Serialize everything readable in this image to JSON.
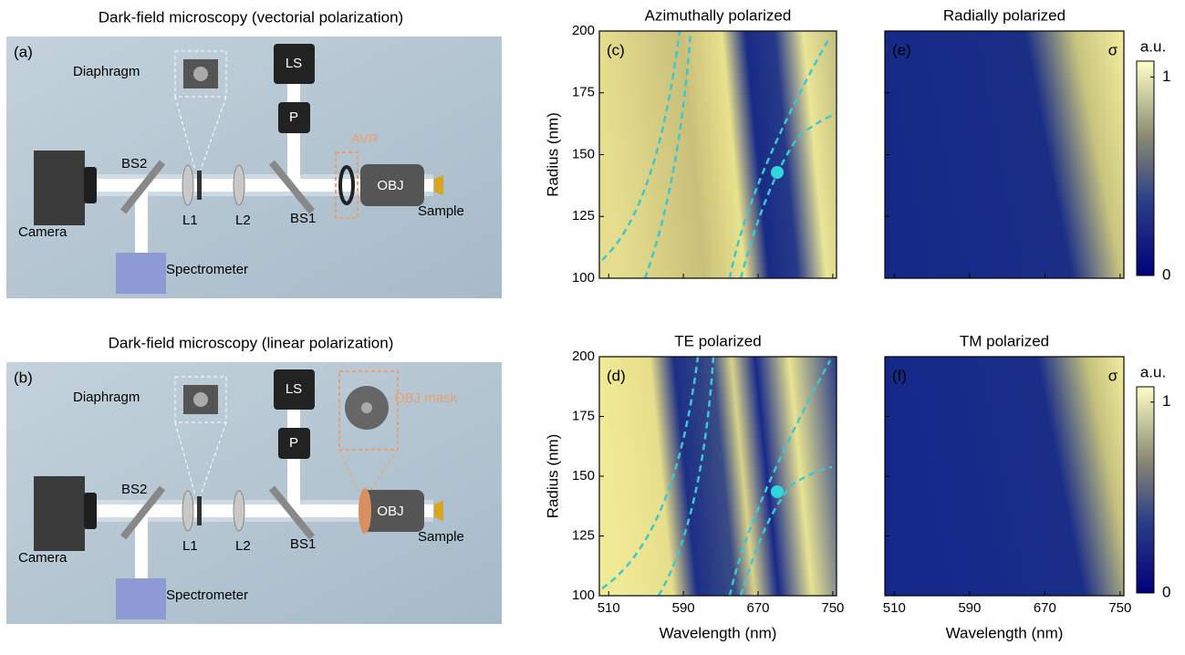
{
  "schematics": [
    {
      "title": "Dark-field microscopy  (vectorial polarization)",
      "panel": "(a)",
      "diaphragm": "Diaphragm",
      "light_source": "LS",
      "polarizer": "P",
      "element": "AVR",
      "beam_splitter_2": "BS2",
      "lens_1": "L1",
      "lens_2": "L2",
      "beam_splitter_1": "BS1",
      "objective": "OBJ",
      "sample": "Sample",
      "camera": "Camera",
      "spectrometer": "Spectrometer"
    },
    {
      "title": "Dark-field microscopy (linear polarization)",
      "panel": "(b)",
      "diaphragm": "Diaphragm",
      "light_source": "LS",
      "polarizer": "P",
      "element": "OBJ mask",
      "beam_splitter_2": "BS2",
      "lens_1": "L1",
      "lens_2": "L2",
      "beam_splitter_1": "BS1",
      "objective": "OBJ",
      "sample": "Sample",
      "camera": "Camera",
      "spectrometer": "Spectrometer"
    }
  ],
  "plots": [
    {
      "title": "Azimuthally polarized",
      "panel": "(c)"
    },
    {
      "title": "Radially polarized",
      "panel": "(e)"
    },
    {
      "title": "TE polarized",
      "panel": "(d)"
    },
    {
      "title": "TM polarized",
      "panel": "(f)"
    }
  ],
  "axes": {
    "xlabel": "Wavelength (nm)",
    "ylabel": "Radius (nm)",
    "xlim": [
      500,
      754
    ],
    "ylim": [
      100,
      200
    ],
    "xticks": [
      510,
      590,
      670,
      750
    ],
    "yticks": [
      100,
      125,
      150,
      175,
      200
    ]
  },
  "colorbar": {
    "label": "a.u.",
    "symbol": "σ",
    "ticks": [
      0,
      1
    ],
    "lim": [
      0,
      1.08
    ]
  }
}
